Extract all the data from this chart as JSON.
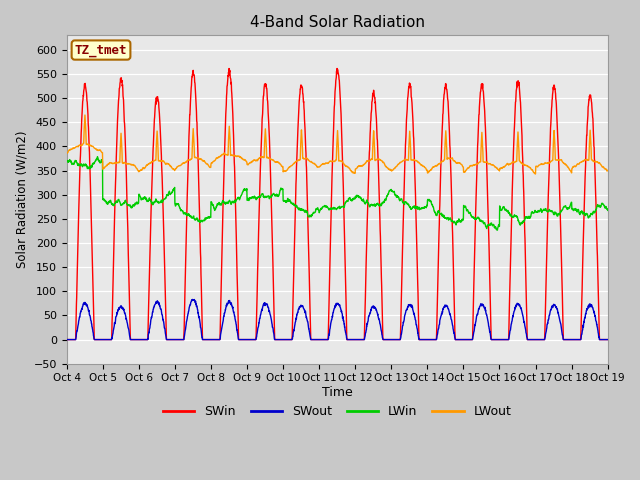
{
  "title": "4-Band Solar Radiation",
  "ylabel": "Solar Radiation (W/m2)",
  "xlabel": "Time",
  "ylim": [
    -50,
    630
  ],
  "yticks": [
    -50,
    0,
    50,
    100,
    150,
    200,
    250,
    300,
    350,
    400,
    450,
    500,
    550,
    600
  ],
  "x_labels": [
    "Oct 4",
    "Oct 5",
    "Oct 6",
    "Oct 7",
    "Oct 8",
    "Oct 9",
    "Oct 10",
    "Oct 11",
    "Oct 12",
    "Oct 13",
    "Oct 14",
    "Oct 15",
    "Oct 16",
    "Oct 17",
    "Oct 18",
    "Oct 19"
  ],
  "legend_labels": [
    "SWin",
    "SWout",
    "LWin",
    "LWout"
  ],
  "legend_colors": [
    "#ff0000",
    "#0000cc",
    "#00cc00",
    "#ff9900"
  ],
  "label_box_text": "TZ_tmet",
  "label_box_color": "#ffffcc",
  "label_box_border": "#aa6600",
  "label_text_color": "#880000",
  "fig_bg_color": "#c8c8c8",
  "plot_bg_color": "#e8e8e8",
  "grid_color": "#ffffff",
  "n_days": 15,
  "pts_per_day": 144,
  "SWin_peak": [
    528,
    540,
    505,
    552,
    557,
    530,
    527,
    560,
    510,
    528,
    527,
    527,
    535,
    523,
    505
  ],
  "SWout_peak": [
    75,
    68,
    78,
    83,
    78,
    75,
    70,
    75,
    68,
    72,
    70,
    73,
    73,
    72,
    72
  ],
  "LWin_base": [
    360,
    290,
    300,
    265,
    295,
    305,
    280,
    285,
    295,
    290,
    265,
    255,
    265,
    275,
    275
  ],
  "LWout_base": [
    385,
    350,
    350,
    355,
    365,
    358,
    352,
    350,
    352,
    352,
    352,
    348,
    348,
    352,
    352
  ]
}
